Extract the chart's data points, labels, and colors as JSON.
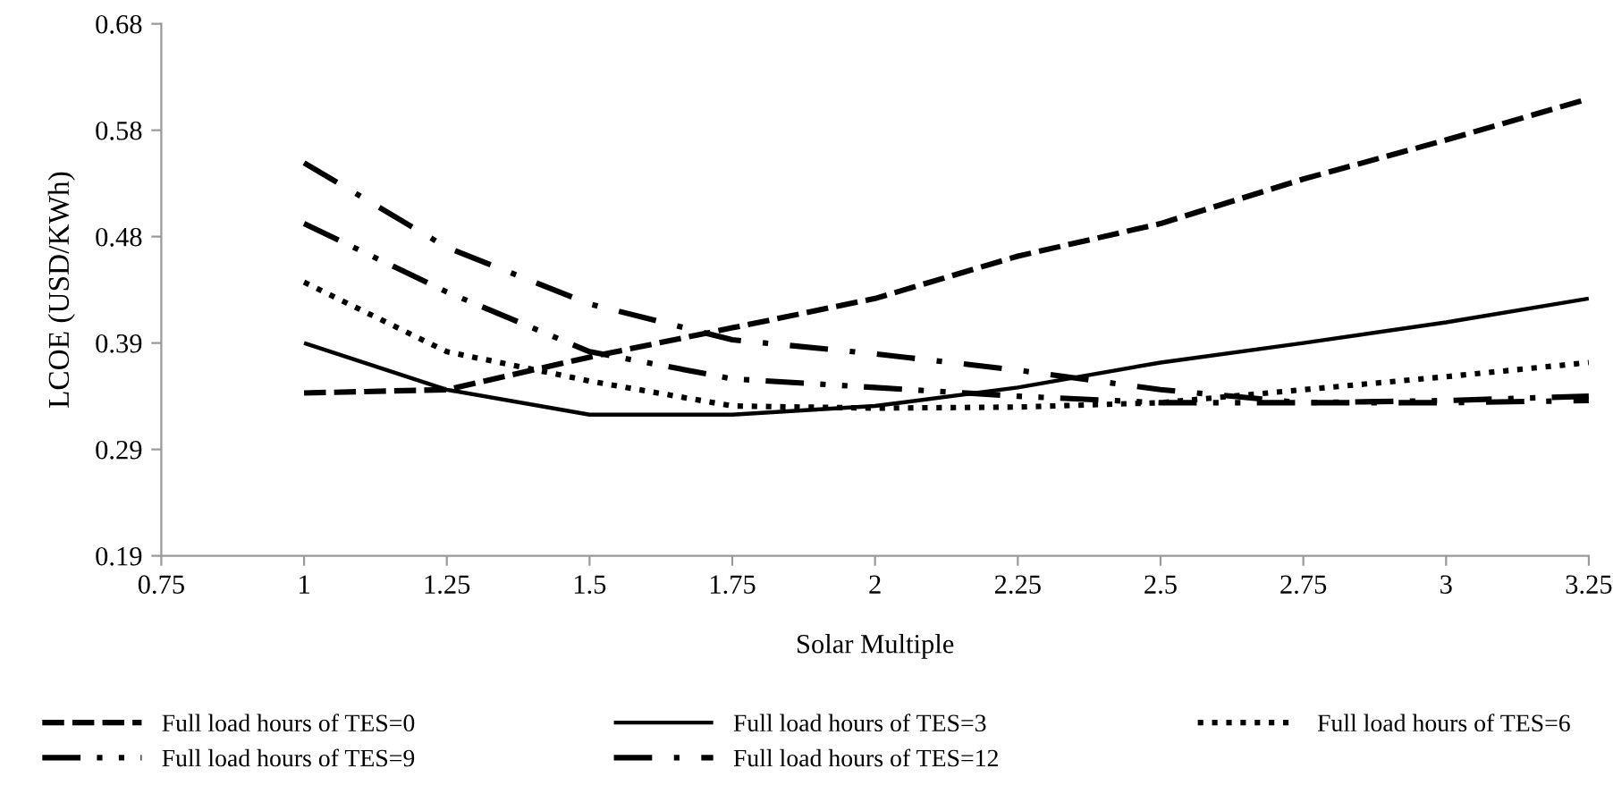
{
  "chart_data": {
    "type": "line",
    "xlabel": "Solar Multiple",
    "ylabel": "LCOE (USD/KWh)",
    "x": [
      1,
      1.25,
      1.5,
      1.75,
      2,
      2.25,
      2.5,
      2.75,
      3,
      3.25
    ],
    "xlim": [
      0.75,
      3.25
    ],
    "xticks": [
      0.75,
      1,
      1.25,
      1.5,
      1.75,
      2,
      2.25,
      2.5,
      2.75,
      3,
      3.25
    ],
    "ylim": [
      0.19,
      0.68
    ],
    "yticks": [
      {
        "value": 0.19,
        "label": "0.19"
      },
      {
        "value": 0.288,
        "label": "0.29"
      },
      {
        "value": 0.386,
        "label": "0.39"
      },
      {
        "value": 0.484,
        "label": "0.48"
      },
      {
        "value": 0.582,
        "label": "0.58"
      },
      {
        "value": 0.68,
        "label": "0.68"
      }
    ],
    "grid": false,
    "legend": "bottom",
    "marker": "none",
    "series": [
      {
        "name": "Full load hours of TES=0",
        "color": "#000000",
        "line_style": "dashed",
        "values": [
          0.34,
          0.343,
          0.373,
          0.4,
          0.427,
          0.466,
          0.496,
          0.537,
          0.573,
          0.611
        ]
      },
      {
        "name": "Full load hours of TES=3",
        "color": "#000000",
        "line_style": "solid",
        "values": [
          0.386,
          0.343,
          0.32,
          0.32,
          0.328,
          0.345,
          0.368,
          0.386,
          0.405,
          0.427
        ]
      },
      {
        "name": "Full load hours of TES=6",
        "color": "#000000",
        "line_style": "dotted",
        "values": [
          0.442,
          0.378,
          0.351,
          0.328,
          0.326,
          0.327,
          0.331,
          0.343,
          0.355,
          0.368
        ]
      },
      {
        "name": "Full load hours of TES=9",
        "color": "#000000",
        "line_style": "dashdotdot",
        "values": [
          0.496,
          0.433,
          0.378,
          0.353,
          0.345,
          0.337,
          0.331,
          0.331,
          0.333,
          0.337
        ]
      },
      {
        "name": "Full load hours of TES=12",
        "color": "#000000",
        "line_style": "dashdot",
        "values": [
          0.552,
          0.474,
          0.422,
          0.389,
          0.376,
          0.361,
          0.343,
          0.331,
          0.331,
          0.333
        ]
      }
    ]
  }
}
